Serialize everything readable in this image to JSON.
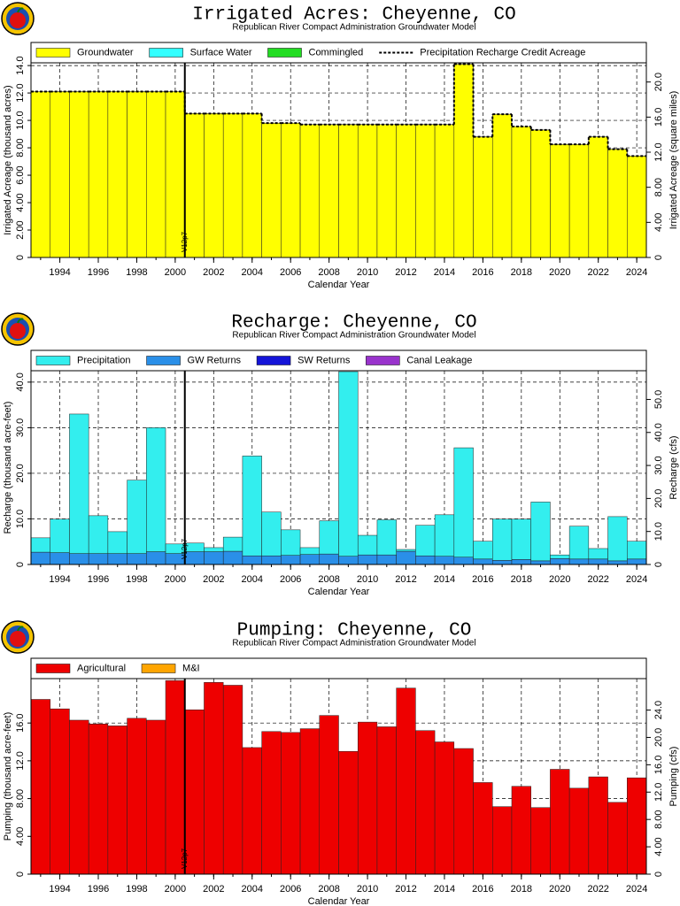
{
  "chart_data": [
    {
      "type": "bar",
      "title": "Irrigated Acres: Cheyenne, CO",
      "subtitle": "Republican River Compact Administration Groundwater Model",
      "xlabel": "Calendar Year",
      "ylabel": "Irrigated Acreage (thousand acres)",
      "y2label": "Irrigated Acreage (square miles)",
      "x": [
        1993,
        1994,
        1995,
        1996,
        1997,
        1998,
        1999,
        2000,
        2001,
        2002,
        2003,
        2004,
        2005,
        2006,
        2007,
        2008,
        2009,
        2010,
        2011,
        2012,
        2013,
        2014,
        2015,
        2016,
        2017,
        2018,
        2019,
        2020,
        2021,
        2022,
        2023,
        2024
      ],
      "xlim": [
        1992.5,
        2024.5
      ],
      "xticks": [
        1994,
        1996,
        1998,
        2000,
        2002,
        2004,
        2006,
        2008,
        2010,
        2012,
        2014,
        2016,
        2018,
        2020,
        2022,
        2024
      ],
      "ylim": [
        0,
        14.2
      ],
      "yticks": [
        0,
        {
          "value": 2,
          "label": "2.00"
        },
        {
          "value": 4,
          "label": "4.00"
        },
        {
          "value": 6,
          "label": "6.00"
        },
        {
          "value": 8,
          "label": "8.00"
        },
        {
          "value": 10,
          "label": "10.0"
        },
        {
          "value": 12,
          "label": "12.0"
        },
        {
          "value": 14,
          "label": "14.0"
        }
      ],
      "y2lim": [
        0,
        22.1875
      ],
      "y2ticks": [
        0,
        {
          "value": 4,
          "label": "4.00"
        },
        {
          "value": 8,
          "label": "8.00"
        },
        {
          "value": 12,
          "label": "12.0"
        },
        {
          "value": 16,
          "label": "16.0"
        },
        {
          "value": 20,
          "label": "20.0"
        }
      ],
      "grid": true,
      "stacked": true,
      "annotation": {
        "text": "V12p7",
        "x": 2000.5
      },
      "series": [
        {
          "name": "Groundwater",
          "color": "#ffff00",
          "values": [
            12.1,
            12.1,
            12.1,
            12.1,
            12.1,
            12.1,
            12.1,
            12.1,
            10.5,
            10.5,
            10.5,
            10.5,
            9.8,
            9.8,
            9.7,
            9.7,
            9.7,
            9.7,
            9.7,
            9.7,
            9.7,
            9.7,
            14.1,
            8.8,
            10.45,
            9.55,
            9.3,
            8.25,
            8.25,
            8.8,
            7.9,
            7.4
          ]
        },
        {
          "name": "Surface Water",
          "color": "#33ffff",
          "values": [
            0,
            0,
            0,
            0,
            0,
            0,
            0,
            0,
            0,
            0,
            0,
            0,
            0,
            0,
            0,
            0,
            0,
            0,
            0,
            0,
            0,
            0,
            0,
            0,
            0,
            0,
            0,
            0,
            0,
            0,
            0,
            0
          ]
        },
        {
          "name": "Commingled",
          "color": "#22dd22",
          "values": [
            0,
            0,
            0,
            0,
            0,
            0,
            0,
            0,
            0,
            0,
            0,
            0,
            0,
            0,
            0,
            0,
            0,
            0,
            0,
            0,
            0,
            0,
            0,
            0,
            0,
            0,
            0,
            0,
            0,
            0,
            0,
            0
          ]
        },
        {
          "name": "Precipitation Recharge Credit Acreage",
          "type": "line",
          "line_style": "dashed",
          "color": "#000000",
          "values": [
            12.1,
            12.1,
            12.1,
            12.1,
            12.1,
            12.1,
            12.1,
            12.1,
            10.5,
            10.5,
            10.5,
            10.5,
            9.8,
            9.8,
            9.7,
            9.7,
            9.7,
            9.7,
            9.7,
            9.7,
            9.7,
            9.7,
            14.1,
            8.8,
            10.45,
            9.55,
            9.3,
            8.25,
            8.25,
            8.8,
            7.9,
            7.4
          ]
        }
      ]
    },
    {
      "type": "bar",
      "title": "Recharge: Cheyenne, CO",
      "subtitle": "Republican River Compact Administration Groundwater Model",
      "xlabel": "Calendar Year",
      "ylabel": "Recharge (thousand acre-feet)",
      "y2label": "Recharge (cfs)",
      "x": [
        1993,
        1994,
        1995,
        1996,
        1997,
        1998,
        1999,
        2000,
        2001,
        2002,
        2003,
        2004,
        2005,
        2006,
        2007,
        2008,
        2009,
        2010,
        2011,
        2012,
        2013,
        2014,
        2015,
        2016,
        2017,
        2018,
        2019,
        2020,
        2021,
        2022,
        2023,
        2024
      ],
      "xlim": [
        1992.5,
        2024.5
      ],
      "xticks": [
        1994,
        1996,
        1998,
        2000,
        2002,
        2004,
        2006,
        2008,
        2010,
        2012,
        2014,
        2016,
        2018,
        2020,
        2022,
        2024
      ],
      "ylim": [
        0,
        42.5
      ],
      "yticks": [
        0,
        {
          "value": 10,
          "label": "10.0"
        },
        {
          "value": 20,
          "label": "20.0"
        },
        {
          "value": 30,
          "label": "30.0"
        },
        {
          "value": 40,
          "label": "40.0"
        }
      ],
      "y2lim": [
        0,
        58.7
      ],
      "y2ticks": [
        0,
        {
          "value": 10,
          "label": "10.0"
        },
        {
          "value": 20,
          "label": "20.0"
        },
        {
          "value": 30,
          "label": "30.0"
        },
        {
          "value": 40,
          "label": "40.0"
        },
        {
          "value": 50,
          "label": "50.0"
        }
      ],
      "grid": true,
      "stacked": true,
      "annotation": {
        "text": "V12p7",
        "x": 2000.5
      },
      "series": [
        {
          "name": "GW Returns",
          "color": "#2a8fe8",
          "values": [
            2.7,
            2.6,
            2.4,
            2.4,
            2.4,
            2.4,
            2.8,
            2.4,
            2.8,
            2.8,
            2.9,
            1.9,
            1.9,
            2.0,
            2.2,
            2.3,
            1.8,
            2.1,
            2.1,
            2.9,
            1.9,
            1.8,
            1.6,
            1.2,
            0.9,
            1.1,
            0.8,
            1.3,
            1.2,
            1.2,
            0.8,
            1.2
          ]
        },
        {
          "name": "SW Returns",
          "color": "#1414d8",
          "values": [
            0,
            0,
            0,
            0,
            0,
            0,
            0,
            0,
            0,
            0,
            0,
            0,
            0,
            0,
            0,
            0,
            0,
            0,
            0,
            0,
            0,
            0,
            0,
            0,
            0,
            0,
            0,
            0,
            0,
            0,
            0,
            0
          ]
        },
        {
          "name": "Canal Leakage",
          "color": "#9933cc",
          "values": [
            0,
            0,
            0,
            0,
            0,
            0,
            0,
            0,
            0,
            0,
            0,
            0,
            0,
            0,
            0,
            0,
            0,
            0,
            0,
            0,
            0,
            0,
            0,
            0,
            0,
            0,
            0,
            0,
            0,
            0,
            0,
            0
          ]
        },
        {
          "name": "Precipitation",
          "color": "#33eeee",
          "values": [
            3.15,
            7.35,
            30.6,
            8.3,
            4.8,
            16.1,
            27.2,
            2.1,
            1.9,
            0.9,
            3.1,
            21.9,
            9.6,
            5.6,
            1.5,
            7.3,
            40.5,
            4.3,
            7.7,
            0.4,
            6.7,
            9.1,
            24.0,
            3.9,
            9.05,
            8.85,
            12.9,
            0.8,
            7.2,
            2.3,
            9.7,
            3.9
          ]
        }
      ],
      "legend_order": [
        "Precipitation",
        "GW Returns",
        "SW Returns",
        "Canal Leakage"
      ]
    },
    {
      "type": "bar",
      "title": "Pumping: Cheyenne, CO",
      "subtitle": "Republican River Compact Administration Groundwater Model",
      "xlabel": "Calendar Year",
      "ylabel": "Pumping (thousand acre-feet)",
      "y2label": "Pumping (cfs)",
      "x": [
        1993,
        1994,
        1995,
        1996,
        1997,
        1998,
        1999,
        2000,
        2001,
        2002,
        2003,
        2004,
        2005,
        2006,
        2007,
        2008,
        2009,
        2010,
        2011,
        2012,
        2013,
        2014,
        2015,
        2016,
        2017,
        2018,
        2019,
        2020,
        2021,
        2022,
        2023,
        2024
      ],
      "xlim": [
        1992.5,
        2024.5
      ],
      "xticks": [
        1994,
        1996,
        1998,
        2000,
        2002,
        2004,
        2006,
        2008,
        2010,
        2012,
        2014,
        2016,
        2018,
        2020,
        2022,
        2024
      ],
      "ylim": [
        0,
        20.7
      ],
      "yticks": [
        0,
        {
          "value": 4,
          "label": "4.00"
        },
        {
          "value": 8,
          "label": "8.00"
        },
        {
          "value": 12,
          "label": "12.0"
        },
        {
          "value": 16,
          "label": "16.0"
        }
      ],
      "y2lim": [
        0,
        28.6
      ],
      "y2ticks": [
        0,
        {
          "value": 4,
          "label": "4.00"
        },
        {
          "value": 8,
          "label": "8.00"
        },
        {
          "value": 12,
          "label": "12.0"
        },
        {
          "value": 16,
          "label": "16.0"
        },
        {
          "value": 20,
          "label": "20.0"
        },
        {
          "value": 24,
          "label": "24.0"
        }
      ],
      "grid": true,
      "stacked": true,
      "annotation": {
        "text": "V12p7",
        "x": 2000.5
      },
      "series": [
        {
          "name": "Agricultural",
          "color": "#ee0000",
          "values": [
            18.5,
            17.5,
            16.3,
            15.9,
            15.7,
            16.5,
            16.3,
            20.5,
            17.4,
            20.3,
            20.0,
            13.4,
            15.1,
            15.0,
            15.4,
            16.8,
            13.0,
            16.1,
            15.6,
            19.7,
            15.2,
            14.0,
            13.3,
            9.7,
            7.15,
            9.3,
            7.05,
            11.1,
            9.1,
            10.3,
            7.6,
            10.2
          ]
        },
        {
          "name": "M&I",
          "color": "#ffa500",
          "values": [
            0,
            0,
            0,
            0,
            0,
            0,
            0,
            0,
            0,
            0,
            0,
            0,
            0,
            0,
            0,
            0,
            0,
            0,
            0,
            0,
            0,
            0,
            0,
            0,
            0,
            0,
            0,
            0,
            0,
            0,
            0,
            0
          ]
        }
      ]
    }
  ]
}
